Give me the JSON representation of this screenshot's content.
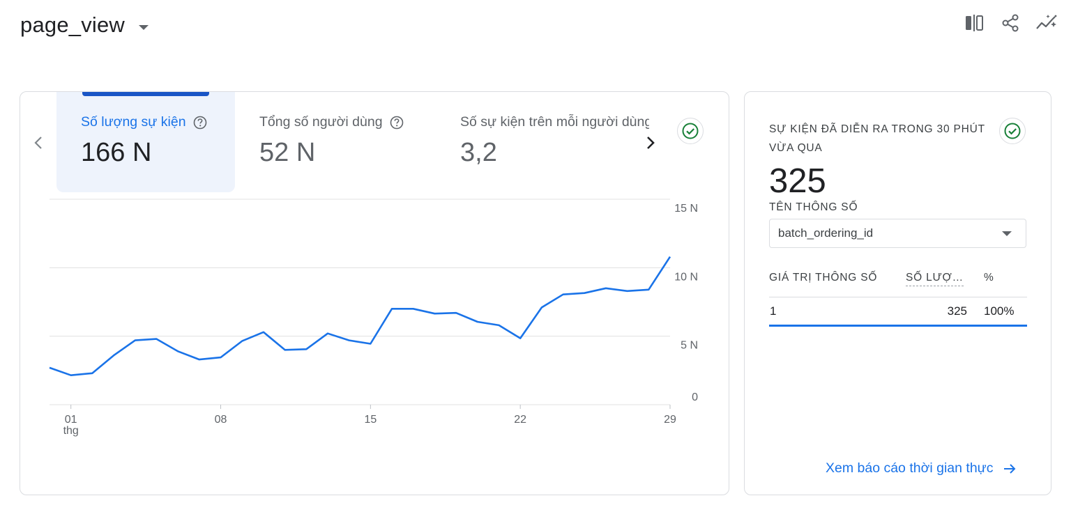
{
  "header": {
    "title": "page_view",
    "icons": [
      "compare-icon",
      "share-icon",
      "insights-icon"
    ]
  },
  "metrics": [
    {
      "label": "Số lượng sự kiện",
      "value": "166 N",
      "active": true
    },
    {
      "label": "Tổng số người dùng",
      "value": "52 N",
      "active": false
    },
    {
      "label": "Số sự kiện trên mỗi người dùng",
      "value": "3,2",
      "active": false
    }
  ],
  "chart_data": {
    "type": "line",
    "x": [
      0,
      1,
      2,
      3,
      4,
      5,
      6,
      7,
      8,
      9,
      10,
      11,
      12,
      13,
      14,
      15,
      16,
      17,
      18,
      19,
      20,
      21,
      22,
      23,
      24,
      25,
      26,
      27,
      28,
      29
    ],
    "x_tick_labels": [
      {
        "label": "01",
        "sublabel": "thg"
      },
      {
        "label": "08",
        "sublabel": ""
      },
      {
        "label": "15",
        "sublabel": ""
      },
      {
        "label": "22",
        "sublabel": ""
      },
      {
        "label": "29",
        "sublabel": ""
      }
    ],
    "x_tick_positions": [
      1,
      8,
      15,
      22,
      29
    ],
    "y_tick_labels": [
      "0",
      "5 N",
      "10 N",
      "15 N"
    ],
    "y_tick_values": [
      0,
      5000,
      10000,
      15000
    ],
    "ylim": [
      0,
      15000
    ],
    "grid": true,
    "series": [
      {
        "color": "#1a73e8",
        "values": [
          2700,
          2150,
          2300,
          3600,
          4700,
          4800,
          3900,
          3300,
          3450,
          4650,
          5300,
          4000,
          4050,
          5200,
          4700,
          4450,
          7000,
          7000,
          6650,
          6700,
          6050,
          5800,
          4850,
          7100,
          8050,
          8150,
          8500,
          8300,
          8400,
          10800
        ]
      }
    ]
  },
  "side": {
    "title": "SỰ KIỆN ĐÃ DIỄN RA TRONG 30 PHÚT VỪA QUA",
    "big_value": "325",
    "param_label": "TÊN THÔNG SỐ",
    "param_selected": "batch_ordering_id",
    "table": {
      "headers": [
        "GIÁ TRỊ THÔNG SỐ",
        "SỐ LƯỢ…",
        "%"
      ],
      "rows": [
        {
          "param": "1",
          "count": "325",
          "pct": "100%"
        }
      ]
    },
    "link_label": "Xem báo cáo thời gian thực"
  },
  "colors": {
    "accent": "#1a73e8",
    "active_tab_bg": "#eef3fc",
    "check_green": "#188038"
  }
}
